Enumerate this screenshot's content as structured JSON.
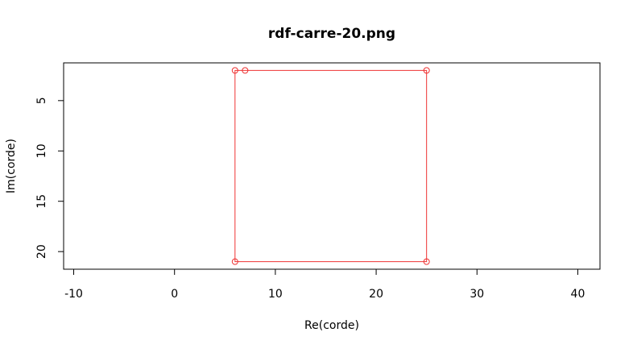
{
  "chart_data": {
    "type": "line",
    "title": "rdf-carre-20.png",
    "xlabel": "Re(corde)",
    "ylabel": "Im(corde)",
    "xlim": [
      -11.0,
      42.2
    ],
    "ylim": [
      21.75,
      1.25
    ],
    "y_reversed": true,
    "grid": false,
    "x_ticks": [
      -10,
      0,
      10,
      20,
      30,
      40
    ],
    "x_tick_labels": [
      "-10",
      "0",
      "10",
      "20",
      "30",
      "40"
    ],
    "y_ticks": [
      5,
      10,
      15,
      20
    ],
    "y_tick_labels": [
      "5",
      "10",
      "15",
      "20"
    ],
    "series": [
      {
        "color": "#ee3333",
        "marker": "open-circle",
        "closed": true,
        "x": [
          6,
          7,
          25,
          25,
          6
        ],
        "y": [
          2,
          2,
          2,
          21,
          21
        ]
      }
    ]
  }
}
